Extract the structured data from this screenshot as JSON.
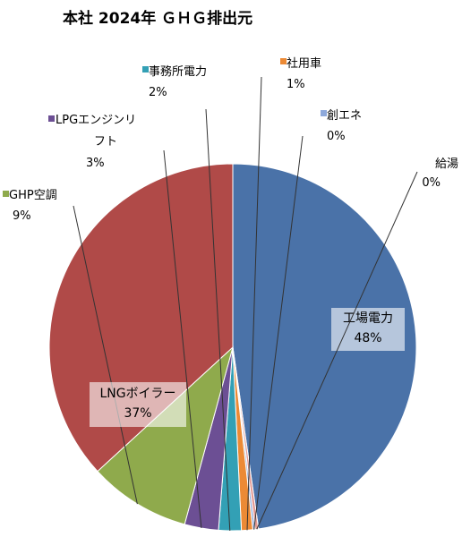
{
  "chart_data": {
    "type": "pie",
    "title": "本社 2024年 ＧＨＧ排出元",
    "slices": [
      {
        "name": "工場電力",
        "value": 48,
        "value_label": "48%",
        "color": "#4a72a8"
      },
      {
        "name": "給湯",
        "value": 0.3,
        "value_label": "0%",
        "color": "#e39b94"
      },
      {
        "name": "創エネ",
        "value": 0.2,
        "value_label": "0%",
        "color": "#8ea9db"
      },
      {
        "name": "社用車",
        "value": 1,
        "value_label": "1%",
        "color": "#ec8a35"
      },
      {
        "name": "事務所電力",
        "value": 2,
        "value_label": "2%",
        "color": "#33a0b5"
      },
      {
        "name": "LPGエンジンリフト",
        "name_lines": [
          "LPGエンジンリ",
          "フト"
        ],
        "value": 3,
        "value_label": "3%",
        "color": "#6c4f94"
      },
      {
        "name": "GHP空調",
        "value": 9,
        "value_label": "9%",
        "color": "#8faa4c"
      },
      {
        "name": "LNGボイラー",
        "value": 37,
        "value_label": "37%",
        "color": "#b04a48"
      }
    ],
    "legend": "none"
  }
}
